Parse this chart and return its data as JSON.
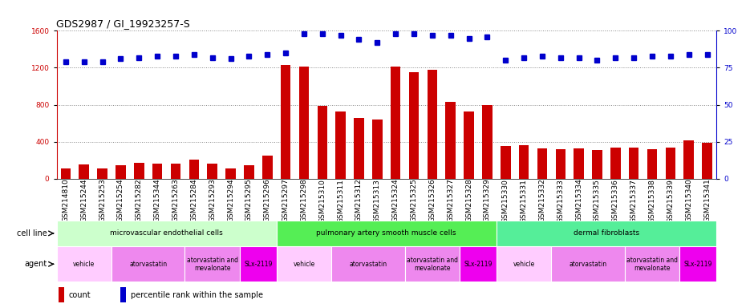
{
  "title": "GDS2987 / GI_19923257-S",
  "samples": [
    "GSM214810",
    "GSM215244",
    "GSM215253",
    "GSM215254",
    "GSM215282",
    "GSM215344",
    "GSM215263",
    "GSM215284",
    "GSM215293",
    "GSM215294",
    "GSM215295",
    "GSM215296",
    "GSM215297",
    "GSM215298",
    "GSM215310",
    "GSM215311",
    "GSM215312",
    "GSM215313",
    "GSM215324",
    "GSM215325",
    "GSM215326",
    "GSM215327",
    "GSM215328",
    "GSM215329",
    "GSM215330",
    "GSM215331",
    "GSM215332",
    "GSM215333",
    "GSM215334",
    "GSM215335",
    "GSM215336",
    "GSM215337",
    "GSM215338",
    "GSM215339",
    "GSM215340",
    "GSM215341"
  ],
  "counts": [
    110,
    155,
    110,
    145,
    170,
    165,
    160,
    205,
    165,
    110,
    145,
    245,
    1230,
    1210,
    790,
    730,
    660,
    640,
    1210,
    1150,
    1180,
    830,
    730,
    800,
    355,
    360,
    330,
    320,
    330,
    310,
    335,
    340,
    320,
    340,
    415,
    390
  ],
  "percentiles": [
    79,
    79,
    79,
    81,
    82,
    83,
    83,
    84,
    82,
    81,
    83,
    84,
    85,
    98,
    98,
    97,
    94,
    92,
    98,
    98,
    97,
    97,
    95,
    96,
    80,
    82,
    83,
    82,
    82,
    80,
    82,
    82,
    83,
    83,
    84,
    84
  ],
  "bar_color": "#cc0000",
  "dot_color": "#0000cc",
  "ylim_left": [
    0,
    1600
  ],
  "ylim_right": [
    0,
    100
  ],
  "yticks_left": [
    0,
    400,
    800,
    1200,
    1600
  ],
  "yticks_right": [
    0,
    25,
    50,
    75,
    100
  ],
  "cell_lines": [
    {
      "label": "microvascular endothelial cells",
      "start": 0,
      "end": 12,
      "color": "#ccffcc"
    },
    {
      "label": "pulmonary artery smooth muscle cells",
      "start": 12,
      "end": 24,
      "color": "#55ee55"
    },
    {
      "label": "dermal fibroblasts",
      "start": 24,
      "end": 36,
      "color": "#55ee99"
    }
  ],
  "agents": [
    {
      "label": "vehicle",
      "start": 0,
      "end": 3,
      "color": "#ffccff"
    },
    {
      "label": "atorvastatin",
      "start": 3,
      "end": 7,
      "color": "#ee88ee"
    },
    {
      "label": "atorvastatin and\nmevalonate",
      "start": 7,
      "end": 10,
      "color": "#ee88ee"
    },
    {
      "label": "SLx-2119",
      "start": 10,
      "end": 12,
      "color": "#ee00ee"
    },
    {
      "label": "vehicle",
      "start": 12,
      "end": 15,
      "color": "#ffccff"
    },
    {
      "label": "atorvastatin",
      "start": 15,
      "end": 19,
      "color": "#ee88ee"
    },
    {
      "label": "atorvastatin and\nmevalonate",
      "start": 19,
      "end": 22,
      "color": "#ee88ee"
    },
    {
      "label": "SLx-2119",
      "start": 22,
      "end": 24,
      "color": "#ee00ee"
    },
    {
      "label": "vehicle",
      "start": 24,
      "end": 27,
      "color": "#ffccff"
    },
    {
      "label": "atorvastatin",
      "start": 27,
      "end": 31,
      "color": "#ee88ee"
    },
    {
      "label": "atorvastatin and\nmevalonate",
      "start": 31,
      "end": 34,
      "color": "#ee88ee"
    },
    {
      "label": "SLx-2119",
      "start": 34,
      "end": 36,
      "color": "#ee00ee"
    }
  ],
  "bg_color": "#ffffff",
  "grid_color": "#888888",
  "title_fontsize": 9,
  "tick_fontsize": 6.5,
  "label_fontsize": 7,
  "bar_width": 0.55
}
